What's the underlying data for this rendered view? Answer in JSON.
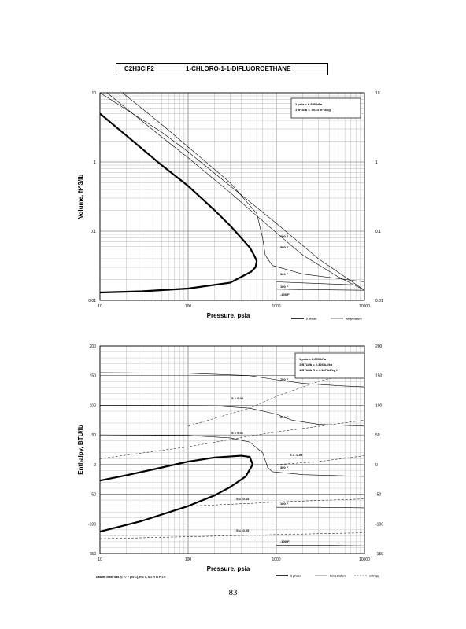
{
  "header": {
    "formula": "C2H3ClF2",
    "name": "1-CHLORO-1-1-DIFLUOROETHANE"
  },
  "page_number": "83",
  "chart_data": [
    {
      "type": "line",
      "xlabel": "Pressure,  psia",
      "ylabel": "Volume, ft^3/lb",
      "x_scale": "log",
      "y_scale": "log",
      "xlim": [
        10,
        10000
      ],
      "ylim": [
        0.01,
        10
      ],
      "grid": true,
      "x_ticks": [
        "10",
        "100",
        "1000",
        "10000"
      ],
      "y_ticks": [
        "10",
        "1",
        "0.1",
        "0.01"
      ],
      "y_ticks_right": [
        "10",
        "1",
        "0.1",
        "0.01"
      ],
      "conversion_box": {
        "lines": [
          "1 psia  =  6.895 kPa",
          "1 ft^3/lb  =  .0624 m^3/kg"
        ],
        "position": "top-right"
      },
      "legend": {
        "entries": [
          "2 phase",
          "temperature"
        ],
        "position": "bottom-right"
      },
      "annotations": [
        "700 F",
        "500 F",
        "300 F",
        "100 F",
        "-100 F"
      ],
      "series": [
        {
          "name": "2 phase",
          "style": "thick",
          "points": [
            [
              10,
              5.0
            ],
            [
              20,
              2.4
            ],
            [
              50,
              0.9
            ],
            [
              100,
              0.45
            ],
            [
              200,
              0.2
            ],
            [
              300,
              0.12
            ],
            [
              400,
              0.08
            ],
            [
              500,
              0.058
            ],
            [
              560,
              0.045
            ],
            [
              600,
              0.037
            ],
            [
              580,
              0.03
            ],
            [
              520,
              0.026
            ],
            [
              300,
              0.018
            ],
            [
              100,
              0.0148
            ],
            [
              30,
              0.0135
            ],
            [
              10,
              0.013
            ]
          ]
        },
        {
          "name": "700 F",
          "style": "thin",
          "points": [
            [
              10,
              10
            ],
            [
              50,
              2.7
            ],
            [
              100,
              1.4
            ],
            [
              300,
              0.45
            ],
            [
              1000,
              0.13
            ],
            [
              3000,
              0.04
            ],
            [
              10000,
              0.014
            ]
          ]
        },
        {
          "name": "500 F",
          "style": "thin",
          "points": [
            [
              12,
              10
            ],
            [
              50,
              2.3
            ],
            [
              100,
              1.15
            ],
            [
              300,
              0.36
            ],
            [
              1000,
              0.095
            ],
            [
              2000,
              0.045
            ],
            [
              5000,
              0.022
            ],
            [
              10000,
              0.014
            ]
          ]
        },
        {
          "name": "300 F",
          "style": "thin",
          "points": [
            [
              18,
              10
            ],
            [
              50,
              3.5
            ],
            [
              100,
              1.65
            ],
            [
              300,
              0.5
            ],
            [
              600,
              0.18
            ],
            [
              700,
              0.08
            ],
            [
              750,
              0.045
            ],
            [
              900,
              0.032
            ],
            [
              2000,
              0.024
            ],
            [
              10000,
              0.0185
            ]
          ]
        },
        {
          "name": "100 F",
          "style": "thin",
          "points": [
            [
              1000,
              0.0185
            ],
            [
              3000,
              0.0175
            ],
            [
              10000,
              0.0165
            ]
          ]
        },
        {
          "name": "-100 F",
          "style": "thin",
          "points": [
            [
              1000,
              0.0145
            ],
            [
              3000,
              0.0142
            ],
            [
              10000,
              0.014
            ]
          ]
        }
      ]
    },
    {
      "type": "line",
      "xlabel": "Pressure,  psia",
      "ylabel": "Enthalpy, BTU/lb",
      "x_scale": "log",
      "y_scale": "linear",
      "xlim": [
        10,
        10000
      ],
      "ylim": [
        -150,
        200
      ],
      "grid": true,
      "x_ticks": [
        "10",
        "100",
        "1000",
        "10000"
      ],
      "y_ticks": [
        "200",
        "150",
        "100",
        "50",
        "0",
        "-50",
        "-100",
        "-150"
      ],
      "y_ticks_right": [
        "200",
        "150",
        "100",
        "50",
        "0",
        "-50",
        "-100",
        "-150"
      ],
      "conversion_box": {
        "lines": [
          "1 psia  =  6.895 kPa",
          "1 BTU/lb  =  2.326 kJ/kg",
          "1 BTU/lb R  =  4.187 kJ/kg K"
        ],
        "position": "top-right"
      },
      "legend": {
        "entries": [
          "2 phase",
          "temperature",
          "entropy"
        ],
        "position": "bottom-right"
      },
      "datum_note": "Datum: Ideal Gas @ 77 F (25 C),  H = 0,  S = R ln P = 0",
      "annotations": [
        "700 F",
        "500 F",
        "300 F",
        "100 F",
        "-100 F",
        "S = 0.08",
        "S = 0.01",
        "S = -0.05",
        "S = -0.15",
        "S = -0.25"
      ],
      "series": [
        {
          "name": "2 phase",
          "style": "thick",
          "points": [
            [
              10,
              -113
            ],
            [
              30,
              -95
            ],
            [
              100,
              -70
            ],
            [
              200,
              -52
            ],
            [
              300,
              -38
            ],
            [
              450,
              -20
            ],
            [
              540,
              0
            ],
            [
              500,
              13
            ],
            [
              400,
              15
            ],
            [
              200,
              12
            ],
            [
              100,
              5
            ],
            [
              50,
              -5
            ],
            [
              20,
              -18
            ],
            [
              10,
              -27
            ]
          ]
        },
        {
          "name": "700 F",
          "style": "thin",
          "points": [
            [
              10,
              155
            ],
            [
              100,
              154
            ],
            [
              500,
              150
            ],
            [
              1000,
              143
            ],
            [
              2000,
              137
            ],
            [
              5000,
              133
            ],
            [
              10000,
              131
            ]
          ]
        },
        {
          "name": "500 F",
          "style": "thin",
          "points": [
            [
              10,
              100
            ],
            [
              200,
              99
            ],
            [
              500,
              95
            ],
            [
              1000,
              85
            ],
            [
              1500,
              75
            ],
            [
              3000,
              68
            ],
            [
              10000,
              65
            ]
          ]
        },
        {
          "name": "300 F",
          "style": "thin",
          "points": [
            [
              10,
              50
            ],
            [
              100,
              49
            ],
            [
              300,
              45
            ],
            [
              500,
              38
            ],
            [
              700,
              20
            ],
            [
              800,
              -5
            ],
            [
              900,
              -12
            ],
            [
              2000,
              -17
            ],
            [
              10000,
              -20
            ]
          ]
        },
        {
          "name": "100 F",
          "style": "thin",
          "points": [
            [
              1000,
              -72
            ],
            [
              3000,
              -72
            ],
            [
              10000,
              -73
            ]
          ]
        },
        {
          "name": "-100 F",
          "style": "thin",
          "points": [
            [
              1000,
              -136
            ],
            [
              3000,
              -136
            ],
            [
              10000,
              -137
            ]
          ]
        },
        {
          "name": "S = 0.08",
          "style": "dashed",
          "points": [
            [
              100,
              65
            ],
            [
              500,
              95
            ],
            [
              1000,
              115
            ],
            [
              3000,
              140
            ],
            [
              10000,
              160
            ]
          ]
        },
        {
          "name": "S = 0.01",
          "style": "dashed",
          "points": [
            [
              10,
              10
            ],
            [
              100,
              30
            ],
            [
              500,
              48
            ],
            [
              1000,
              55
            ],
            [
              10000,
              75
            ]
          ]
        },
        {
          "name": "S = -0.05",
          "style": "dashed",
          "points": [
            [
              1000,
              0
            ],
            [
              3000,
              5
            ],
            [
              10000,
              15
            ]
          ]
        },
        {
          "name": "S = -0.15",
          "style": "dashed",
          "points": [
            [
              100,
              -70
            ],
            [
              600,
              -65
            ],
            [
              1000,
              -63
            ],
            [
              10000,
              -58
            ]
          ]
        },
        {
          "name": "S = -0.25",
          "style": "dashed",
          "points": [
            [
              10,
              -125
            ],
            [
              300,
              -120
            ],
            [
              1000,
              -118
            ],
            [
              10000,
              -115
            ]
          ]
        }
      ]
    }
  ]
}
